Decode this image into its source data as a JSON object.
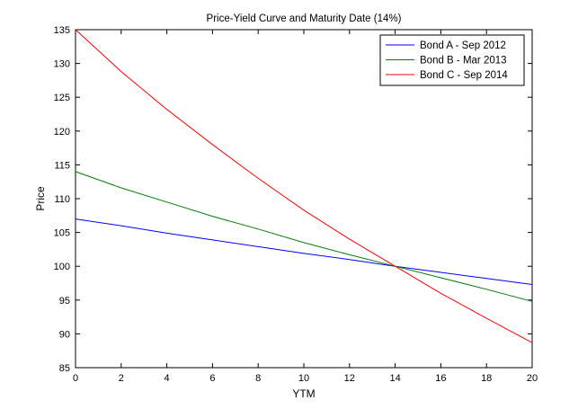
{
  "chart_data": {
    "type": "line",
    "title": "Price-Yield Curve and Maturity Date (14%)",
    "xlabel": "YTM",
    "ylabel": "Price",
    "xlim": [
      0,
      20
    ],
    "ylim": [
      85,
      135
    ],
    "xticks": [
      0,
      2,
      4,
      6,
      8,
      10,
      12,
      14,
      16,
      18,
      20
    ],
    "yticks": [
      85,
      90,
      95,
      100,
      105,
      110,
      115,
      120,
      125,
      130,
      135
    ],
    "grid": false,
    "legend_position": "top-right",
    "x": [
      0,
      2,
      4,
      6,
      8,
      10,
      12,
      14,
      16,
      18,
      20
    ],
    "series": [
      {
        "name": "Bond A - Sep 2012",
        "color": "#0000ff",
        "values": [
          107.0,
          106.0,
          104.9,
          103.9,
          102.9,
          101.9,
          101.0,
          100.0,
          99.1,
          98.2,
          97.3
        ]
      },
      {
        "name": "Bond B - Mar 2013",
        "color": "#008000",
        "values": [
          114.0,
          111.6,
          109.5,
          107.4,
          105.5,
          103.5,
          101.7,
          100.0,
          98.3,
          96.6,
          94.8
        ]
      },
      {
        "name": "Bond C - Sep 2014",
        "color": "#ff0000",
        "values": [
          135.0,
          128.8,
          123.2,
          118.0,
          113.0,
          108.3,
          104.0,
          100.0,
          96.0,
          92.3,
          88.7
        ]
      }
    ]
  }
}
